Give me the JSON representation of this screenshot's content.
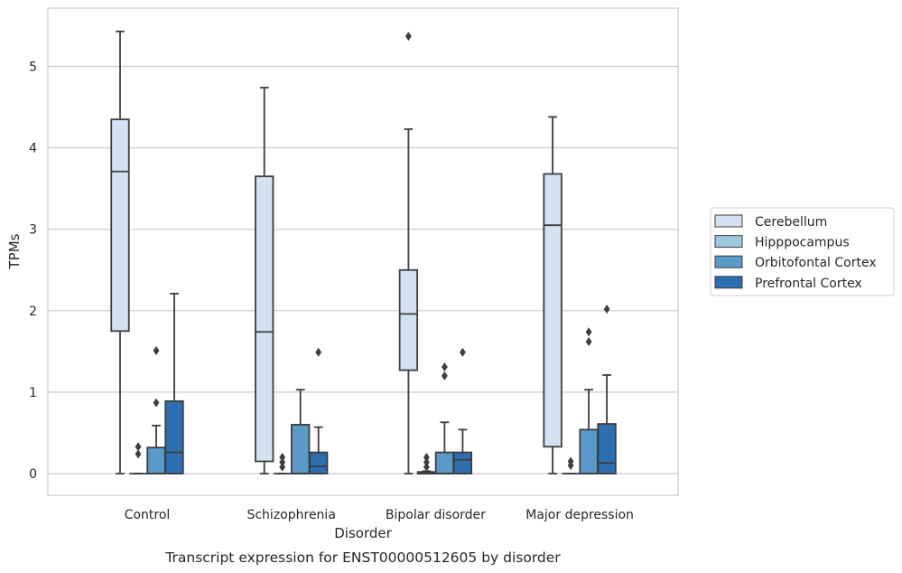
{
  "caption": "Transcript expression for ENST00000512605 by disorder",
  "chart_data": {
    "type": "boxplot",
    "title": "",
    "xlabel": "Disorder",
    "ylabel": "TPMs",
    "ylim": [
      -0.27,
      5.72
    ],
    "yticks": [
      "0",
      "1",
      "2",
      "3",
      "4",
      "5"
    ],
    "grid": "horizontal",
    "legend_position": "right",
    "categories": [
      "Control",
      "Schizophrenia",
      "Bipolar disorder",
      "Major depression"
    ],
    "series": [
      {
        "name": "Cerebellum",
        "color": "#d2e2f2",
        "boxes": [
          {
            "whisker_low": 0.0,
            "q1": 1.75,
            "median": 3.71,
            "q3": 4.35,
            "whisker_high": 5.43,
            "outliers": []
          },
          {
            "whisker_low": 0.0,
            "q1": 0.15,
            "median": 1.74,
            "q3": 3.65,
            "whisker_high": 4.74,
            "outliers": []
          },
          {
            "whisker_low": 0.0,
            "q1": 1.27,
            "median": 1.96,
            "q3": 2.5,
            "whisker_high": 4.23,
            "outliers": [
              5.37
            ]
          },
          {
            "whisker_low": 0.0,
            "q1": 0.33,
            "median": 3.05,
            "q3": 3.68,
            "whisker_high": 4.38,
            "outliers": []
          }
        ]
      },
      {
        "name": "Hipppocampus",
        "color": "#9dc6e0",
        "boxes": [
          {
            "whisker_low": 0.0,
            "q1": 0.0,
            "median": 0.0,
            "q3": 0.0,
            "whisker_high": 0.0,
            "outliers": [
              0.24,
              0.33
            ]
          },
          {
            "whisker_low": 0.0,
            "q1": 0.0,
            "median": 0.0,
            "q3": 0.0,
            "whisker_high": 0.0,
            "outliers": [
              0.08,
              0.14,
              0.2
            ]
          },
          {
            "whisker_low": 0.0,
            "q1": 0.0,
            "median": 0.0,
            "q3": 0.02,
            "whisker_high": 0.03,
            "outliers": [
              0.08,
              0.14,
              0.2
            ]
          },
          {
            "whisker_low": 0.0,
            "q1": 0.0,
            "median": 0.0,
            "q3": 0.0,
            "whisker_high": 0.0,
            "outliers": [
              0.1,
              0.15
            ]
          }
        ]
      },
      {
        "name": "Orbitofontal Cortex",
        "color": "#5a9ac9",
        "boxes": [
          {
            "whisker_low": 0.0,
            "q1": 0.0,
            "median": 0.0,
            "q3": 0.32,
            "whisker_high": 0.59,
            "outliers": [
              0.87,
              1.51
            ]
          },
          {
            "whisker_low": 0.0,
            "q1": 0.0,
            "median": 0.0,
            "q3": 0.6,
            "whisker_high": 1.03,
            "outliers": []
          },
          {
            "whisker_low": 0.0,
            "q1": 0.0,
            "median": 0.0,
            "q3": 0.26,
            "whisker_high": 0.63,
            "outliers": [
              1.2,
              1.31
            ]
          },
          {
            "whisker_low": 0.0,
            "q1": 0.0,
            "median": 0.0,
            "q3": 0.54,
            "whisker_high": 1.03,
            "outliers": [
              1.62,
              1.74
            ]
          }
        ]
      },
      {
        "name": "Prefrontal Cortex",
        "color": "#2c6eaf",
        "boxes": [
          {
            "whisker_low": 0.0,
            "q1": 0.0,
            "median": 0.26,
            "q3": 0.89,
            "whisker_high": 2.21,
            "outliers": []
          },
          {
            "whisker_low": 0.0,
            "q1": 0.0,
            "median": 0.09,
            "q3": 0.26,
            "whisker_high": 0.57,
            "outliers": [
              1.49
            ]
          },
          {
            "whisker_low": 0.0,
            "q1": 0.0,
            "median": 0.17,
            "q3": 0.26,
            "whisker_high": 0.54,
            "outliers": [
              1.49
            ]
          },
          {
            "whisker_low": 0.0,
            "q1": 0.0,
            "median": 0.13,
            "q3": 0.61,
            "whisker_high": 1.21,
            "outliers": [
              2.02
            ]
          }
        ]
      }
    ]
  }
}
